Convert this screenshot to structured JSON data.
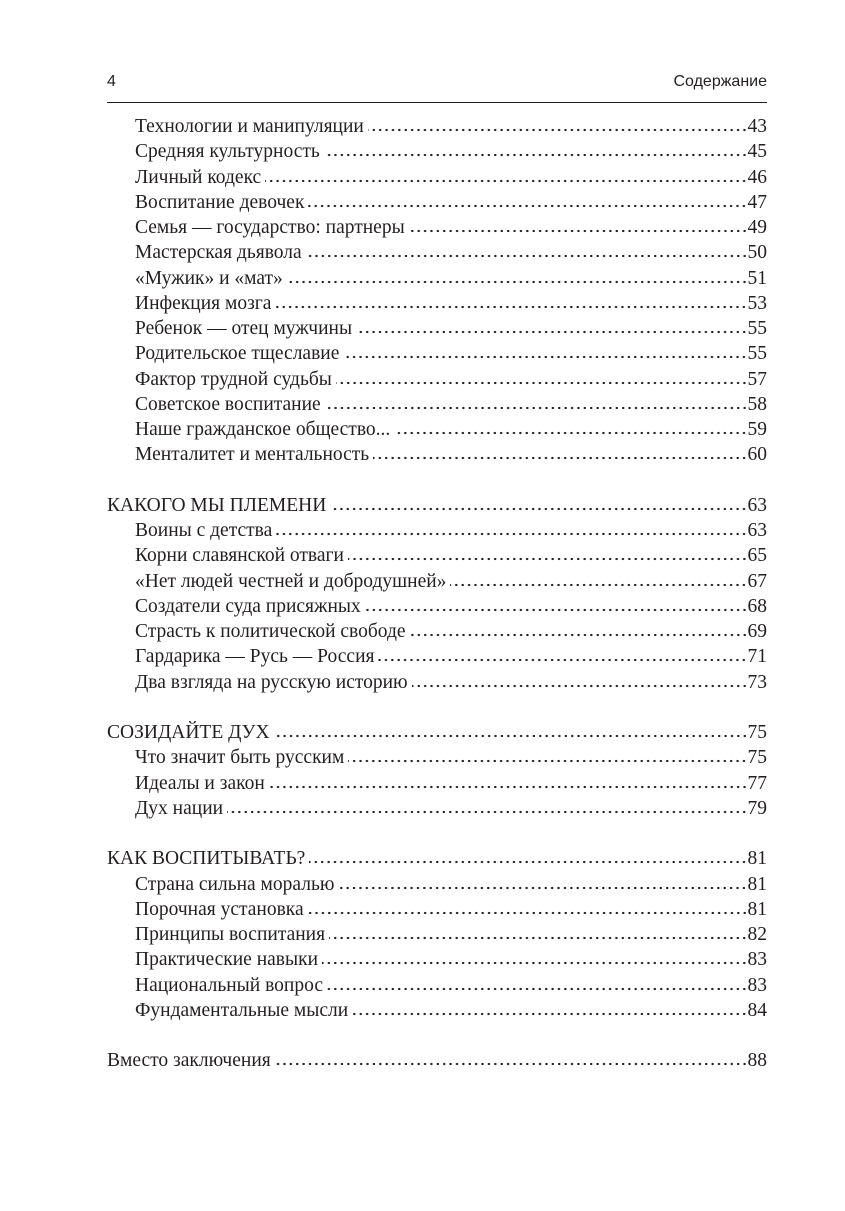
{
  "header": {
    "page_number": "4",
    "section": "Содержание"
  },
  "toc": [
    {
      "title": "Технологии и манипуляции",
      "page": "43",
      "level": 2
    },
    {
      "title": "Средняя культурность",
      "page": "45",
      "level": 2
    },
    {
      "title": "Личный кодекс",
      "page": "46",
      "level": 2
    },
    {
      "title": "Воспитание девочек",
      "page": "47",
      "level": 2
    },
    {
      "title": "Семья — государство: партнеры",
      "page": "49",
      "level": 2
    },
    {
      "title": "Мастерская дьявола",
      "page": "50",
      "level": 2
    },
    {
      "title": "«Мужик» и «мат»",
      "page": "51",
      "level": 2
    },
    {
      "title": "Инфекция мозга",
      "page": "53",
      "level": 2
    },
    {
      "title": "Ребенок — отец мужчины",
      "page": "55",
      "level": 2
    },
    {
      "title": "Родительское тщеславие",
      "page": "55",
      "level": 2
    },
    {
      "title": "Фактор трудной судьбы",
      "page": "57",
      "level": 2
    },
    {
      "title": "Советское воспитание",
      "page": "58",
      "level": 2
    },
    {
      "title": "Наше гражданское общество...",
      "page": "59",
      "level": 2
    },
    {
      "title": "Менталитет и ментальность",
      "page": "60",
      "level": 2
    },
    {
      "title": "КАКОГО МЫ ПЛЕМЕНИ",
      "page": "63",
      "level": 1
    },
    {
      "title": "Воины с детства",
      "page": "63",
      "level": 2
    },
    {
      "title": "Корни славянской отваги",
      "page": "65",
      "level": 2
    },
    {
      "title": "«Нет людей честней и добродушней»",
      "page": "67",
      "level": 2
    },
    {
      "title": "Создатели суда присяжных",
      "page": "68",
      "level": 2
    },
    {
      "title": "Страсть к политической свободе",
      "page": "69",
      "level": 2
    },
    {
      "title": "Гардарика — Русь — Россия",
      "page": "71",
      "level": 2
    },
    {
      "title": "Два взгляда на русскую историю",
      "page": "73",
      "level": 2
    },
    {
      "title": "СОЗИДАЙТЕ ДУХ",
      "page": "75",
      "level": 1
    },
    {
      "title": "Что значит быть русским",
      "page": "75",
      "level": 2
    },
    {
      "title": "Идеалы и закон",
      "page": "77",
      "level": 2
    },
    {
      "title": "Дух нации",
      "page": "79",
      "level": 2
    },
    {
      "title": "КАК ВОСПИТЫВАТЬ?",
      "page": "81",
      "level": 1
    },
    {
      "title": "Страна сильна моралью",
      "page": "81",
      "level": 2
    },
    {
      "title": "Порочная установка",
      "page": "81",
      "level": 2
    },
    {
      "title": "Принципы воспитания",
      "page": "82",
      "level": 2
    },
    {
      "title": "Практические навыки",
      "page": "83",
      "level": 2
    },
    {
      "title": "Национальный вопрос",
      "page": "83",
      "level": 2
    },
    {
      "title": "Фундаментальные мысли",
      "page": "84",
      "level": 2
    },
    {
      "title": "Вместо заключения",
      "page": "88",
      "level": 1
    }
  ]
}
